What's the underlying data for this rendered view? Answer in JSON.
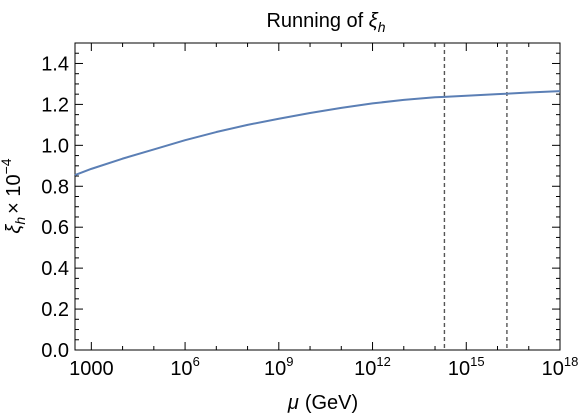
{
  "chart_data": {
    "type": "line",
    "title": {
      "text": "Running of ",
      "symbol": "ξ",
      "subscript": "h"
    },
    "xlabel": {
      "symbol": "μ",
      "text": "(GeV)"
    },
    "ylabel": {
      "symbol": "ξ",
      "subscript": "h",
      "times": "× 10",
      "exponent": "−4"
    },
    "x_scale": "log",
    "xlim": [
      300,
      1e+18
    ],
    "ylim": [
      0,
      1.5
    ],
    "x_ticks": [
      {
        "value": 1000,
        "base": "1000",
        "exp": ""
      },
      {
        "value": 1000000.0,
        "base": "10",
        "exp": "6"
      },
      {
        "value": 1000000000.0,
        "base": "10",
        "exp": "9"
      },
      {
        "value": 1000000000000.0,
        "base": "10",
        "exp": "12"
      },
      {
        "value": 1000000000000000.0,
        "base": "10",
        "exp": "15"
      },
      {
        "value": 1e+18,
        "base": "10",
        "exp": "18"
      }
    ],
    "y_ticks": [
      "0.0",
      "0.2",
      "0.4",
      "0.6",
      "0.8",
      "1.0",
      "1.2",
      "1.4"
    ],
    "series": [
      {
        "color": "#5b7fb5",
        "x": [
          300,
          1000,
          10000.0,
          100000.0,
          1000000.0,
          10000000.0,
          100000000.0,
          1000000000.0,
          10000000000.0,
          100000000000.0,
          1000000000000.0,
          10000000000000.0,
          100000000000000.0,
          200000000000000.0,
          1000000000000000.0,
          1e+16,
          1e+17,
          1e+18
        ],
        "y": [
          0.855,
          0.885,
          0.935,
          0.98,
          1.025,
          1.065,
          1.1,
          1.13,
          1.158,
          1.183,
          1.205,
          1.222,
          1.235,
          1.237,
          1.242,
          1.25,
          1.258,
          1.265
        ]
      }
    ],
    "vlines": [
      {
        "x": 200000000000000.0,
        "style": "dashed",
        "color": "#555555"
      },
      {
        "x": 2e+16,
        "style": "dashed",
        "color": "#555555"
      }
    ]
  }
}
